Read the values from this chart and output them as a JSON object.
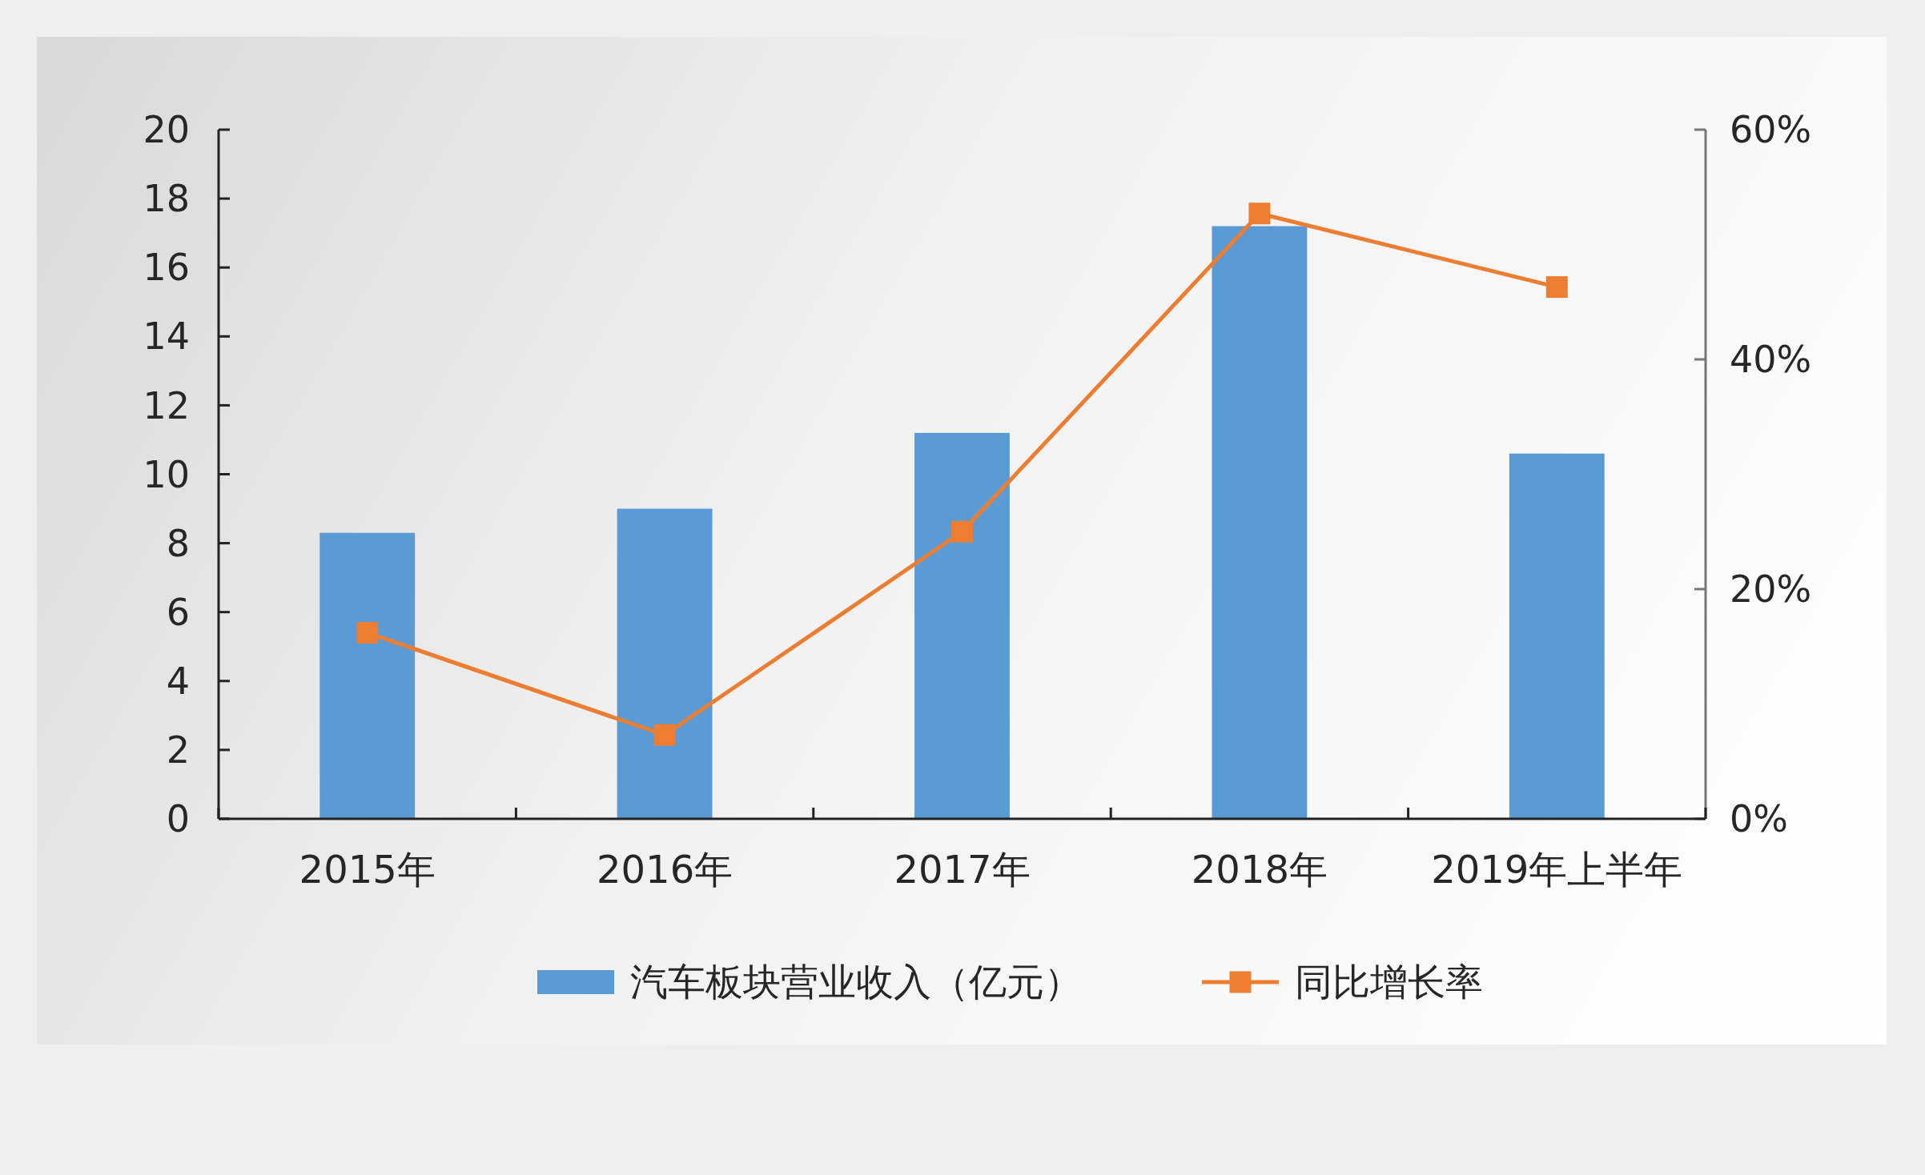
{
  "chart_data": {
    "type": "bar",
    "categories": [
      "2015年",
      "2016年",
      "2017年",
      "2018年",
      "2019年上半年"
    ],
    "series": [
      {
        "name": "汽车板块营业收入（亿元）",
        "color": "#5b9bd5",
        "values": [
          8.3,
          9.0,
          11.2,
          17.2,
          10.6
        ]
      },
      {
        "name": "同比增长率",
        "type": "line",
        "axis": "y2",
        "color": "#ed7d31",
        "values": [
          16.2,
          7.3,
          25.0,
          52.7,
          46.3
        ]
      }
    ],
    "ylim": [
      0,
      20
    ],
    "yticks": [
      0,
      2,
      4,
      6,
      8,
      10,
      12,
      14,
      16,
      18,
      20
    ],
    "y2lim": [
      0,
      60
    ],
    "y2ticks": [
      {
        "value": 0,
        "label": "0%"
      },
      {
        "value": 20,
        "label": "20%"
      },
      {
        "value": 40,
        "label": "40%"
      },
      {
        "value": 60,
        "label": "60%"
      }
    ],
    "legend": "bottom",
    "marker": "square"
  }
}
